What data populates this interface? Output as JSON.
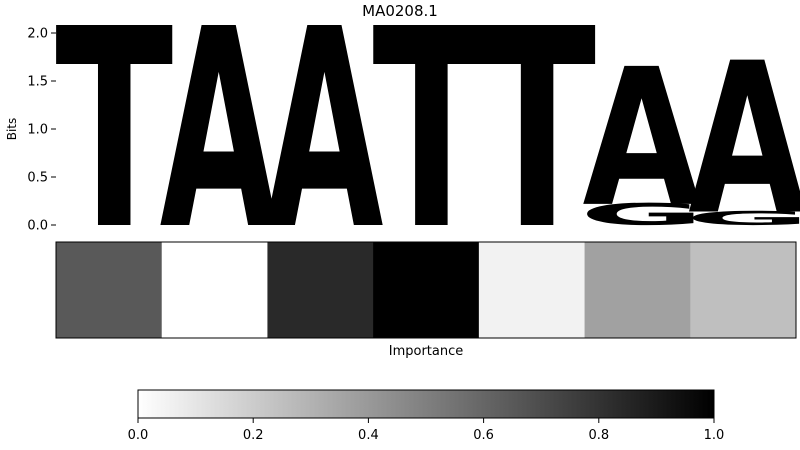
{
  "chart_data": [
    {
      "type": "sequence-logo",
      "title": "MA0208.1",
      "ylabel": "Bits",
      "ylim": [
        0,
        2.0
      ],
      "yticks": [
        "0.0",
        "0.5",
        "1.0",
        "1.5",
        "2.0"
      ],
      "positions": [
        {
          "stack": [
            {
              "letter": "T",
              "bits": 2.0
            }
          ]
        },
        {
          "stack": [
            {
              "letter": "A",
              "bits": 2.0
            }
          ]
        },
        {
          "stack": [
            {
              "letter": "A",
              "bits": 2.0
            }
          ]
        },
        {
          "stack": [
            {
              "letter": "T",
              "bits": 2.0
            }
          ]
        },
        {
          "stack": [
            {
              "letter": "T",
              "bits": 2.0
            }
          ]
        },
        {
          "stack": [
            {
              "letter": "G",
              "bits": 0.22
            },
            {
              "letter": "A",
              "bits": 1.38
            }
          ]
        },
        {
          "stack": [
            {
              "letter": "G",
              "bits": 0.14
            },
            {
              "letter": "A",
              "bits": 1.52
            }
          ]
        }
      ],
      "colors": {
        "A": "#4ca84c",
        "T": "#ff4d4d",
        "G": "#ffb84d",
        "C": "#4d6bff"
      }
    },
    {
      "type": "heatmap",
      "xlabel": "Importance",
      "values": [
        0.65,
        0.0,
        0.84,
        1.0,
        0.05,
        0.37,
        0.25
      ],
      "colormap": "gray-reversed"
    },
    {
      "type": "colorbar",
      "range": [
        0.0,
        1.0
      ],
      "tick_labels": [
        "0.0",
        "0.2",
        "0.4",
        "0.6",
        "0.8",
        "1.0"
      ]
    }
  ]
}
